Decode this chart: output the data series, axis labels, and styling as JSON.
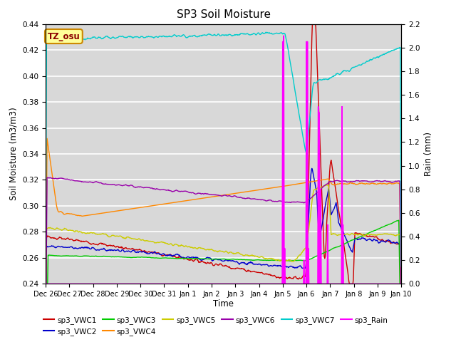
{
  "title": "SP3 Soil Moisture",
  "ylabel_left": "Soil Moisture (m3/m3)",
  "ylabel_right": "Rain (mm)",
  "xlabel": "Time",
  "annotation": "TZ_osu",
  "ylim_left": [
    0.24,
    0.44
  ],
  "ylim_right": [
    0.0,
    2.2
  ],
  "background_color": "#d8d8d8",
  "grid_color": "#ffffff",
  "series_colors": {
    "sp3_VWC1": "#cc0000",
    "sp3_VWC2": "#0000cc",
    "sp3_VWC3": "#00cc00",
    "sp3_VWC4": "#ff8800",
    "sp3_VWC5": "#cccc00",
    "sp3_VWC6": "#9900aa",
    "sp3_VWC7": "#00cccc",
    "sp3_Rain": "#ff00ff"
  },
  "xtick_labels": [
    "Dec 26",
    "Dec 27",
    "Dec 28",
    "Dec 29",
    "Dec 30",
    "Dec 31",
    "Jan 1",
    "Jan 2",
    "Jan 3",
    "Jan 4",
    "Jan 5",
    "Jan 6",
    "Jan 7",
    "Jan 8",
    "Jan 9",
    "Jan 10"
  ],
  "xtick_positions": [
    0,
    1,
    2,
    3,
    4,
    5,
    6,
    7,
    8,
    9,
    10,
    11,
    12,
    13,
    14,
    15
  ]
}
